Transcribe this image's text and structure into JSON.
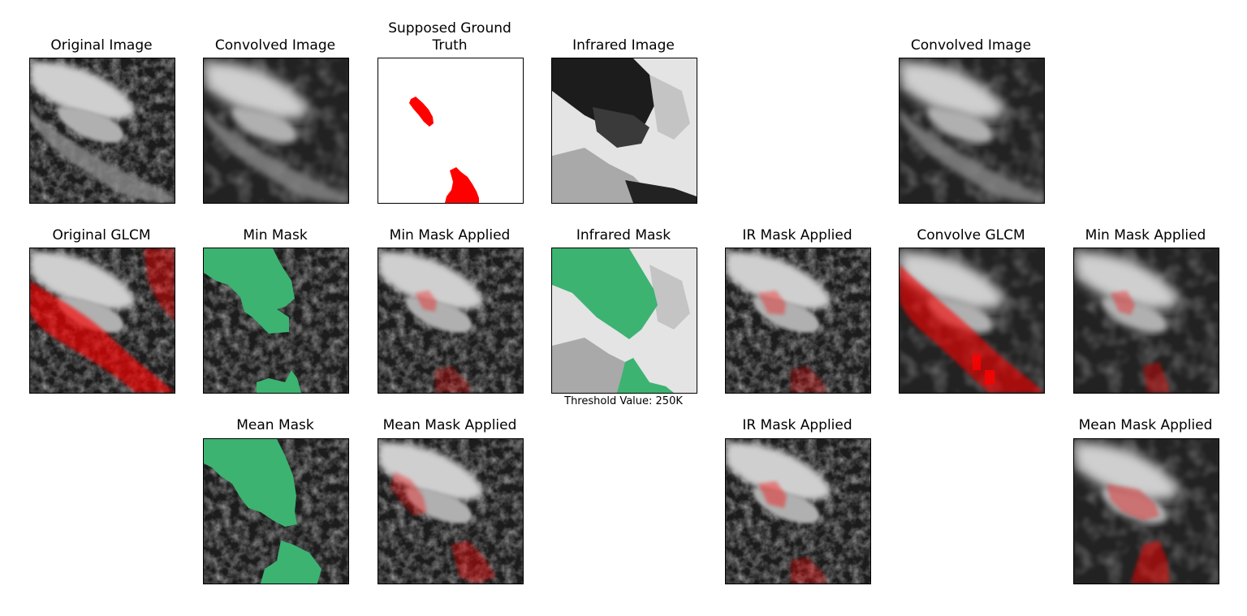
{
  "panels": {
    "original_image": {
      "title": "Original Image"
    },
    "convolved_image_1": {
      "title": "Convolved Image"
    },
    "ground_truth": {
      "title_line1": "Supposed Ground",
      "title_line2": "Truth"
    },
    "infrared_image": {
      "title": "Infrared Image"
    },
    "convolved_image_2": {
      "title": "Convolved Image"
    },
    "original_glcm": {
      "title": "Original GLCM"
    },
    "min_mask": {
      "title": "Min Mask"
    },
    "min_mask_applied_1": {
      "title": "Min Mask Applied"
    },
    "infrared_mask": {
      "title": "Infrared Mask",
      "caption": "Threshold Value: 250K"
    },
    "ir_mask_applied_1": {
      "title": "IR Mask Applied"
    },
    "convolve_glcm": {
      "title": "Convolve GLCM"
    },
    "min_mask_applied_2": {
      "title": "Min Mask Applied"
    },
    "mean_mask": {
      "title": "Mean Mask"
    },
    "mean_mask_applied_1": {
      "title": "Mean Mask Applied"
    },
    "ir_mask_applied_2": {
      "title": "IR Mask Applied"
    },
    "mean_mask_applied_2": {
      "title": "Mean Mask Applied"
    }
  },
  "colors": {
    "mask_green": "#3cb371",
    "overlay_red": "#ff0000",
    "background": "#ffffff"
  }
}
